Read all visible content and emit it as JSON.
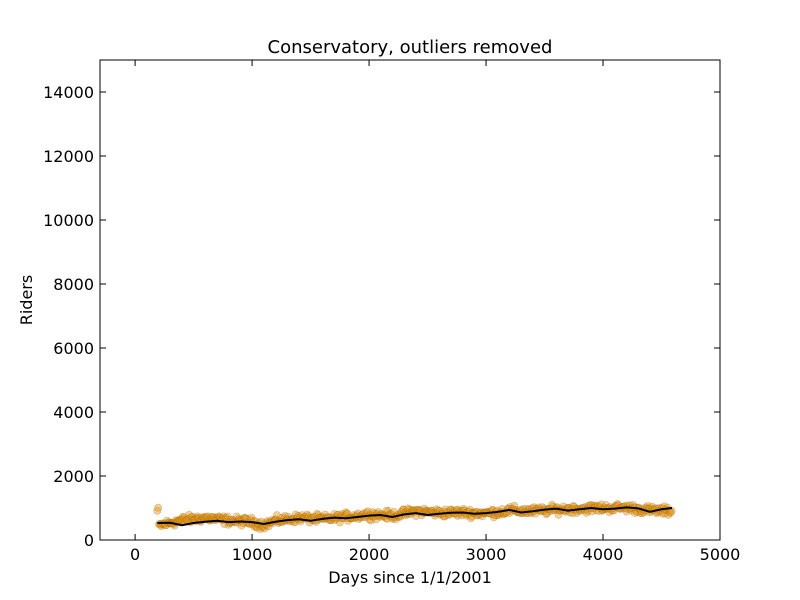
{
  "chart_data": {
    "type": "scatter",
    "title": "Conservatory, outliers removed",
    "xlabel": "Days since 1/1/2001",
    "ylabel": "Riders",
    "xlim": [
      -300,
      5000
    ],
    "ylim": [
      0,
      15000
    ],
    "xticks": [
      0,
      1000,
      2000,
      3000,
      4000,
      5000
    ],
    "yticks": [
      0,
      2000,
      4000,
      6000,
      8000,
      10000,
      12000,
      14000
    ],
    "grid": false,
    "legend": "none",
    "colors": {
      "points": "#e69a1c",
      "point_edge": "#8a5a00",
      "line": "#000000"
    },
    "series": [
      {
        "kind": "points",
        "x_range": [
          190,
          4590
        ],
        "y_center": [
          [
            200,
            450
          ],
          [
            400,
            620
          ],
          [
            600,
            690
          ],
          [
            800,
            610
          ],
          [
            1000,
            560
          ],
          [
            1100,
            470
          ],
          [
            1200,
            600
          ],
          [
            1400,
            690
          ],
          [
            1600,
            650
          ],
          [
            1800,
            720
          ],
          [
            2000,
            800
          ],
          [
            2200,
            760
          ],
          [
            2400,
            900
          ],
          [
            2600,
            850
          ],
          [
            2800,
            860
          ],
          [
            3000,
            830
          ],
          [
            3200,
            920
          ],
          [
            3400,
            900
          ],
          [
            3600,
            950
          ],
          [
            3800,
            980
          ],
          [
            4000,
            1000
          ],
          [
            4200,
            1010
          ],
          [
            4400,
            930
          ],
          [
            4590,
            900
          ]
        ],
        "spread": 130
      },
      {
        "kind": "line",
        "x": [
          190,
          300,
          400,
          500,
          600,
          700,
          800,
          900,
          1000,
          1100,
          1200,
          1300,
          1400,
          1500,
          1600,
          1700,
          1800,
          1900,
          2000,
          2100,
          2200,
          2300,
          2400,
          2500,
          2600,
          2700,
          2800,
          2900,
          3000,
          3100,
          3200,
          3300,
          3400,
          3500,
          3600,
          3700,
          3800,
          3900,
          4000,
          4100,
          4200,
          4300,
          4400,
          4500,
          4590
        ],
        "y": [
          530,
          540,
          460,
          530,
          570,
          600,
          560,
          580,
          560,
          500,
          570,
          620,
          650,
          600,
          660,
          700,
          680,
          720,
          760,
          780,
          720,
          800,
          840,
          780,
          820,
          850,
          860,
          820,
          840,
          880,
          940,
          860,
          900,
          950,
          980,
          920,
          960,
          1000,
          960,
          980,
          1020,
          990,
          880,
          960,
          1000
        ]
      }
    ]
  }
}
